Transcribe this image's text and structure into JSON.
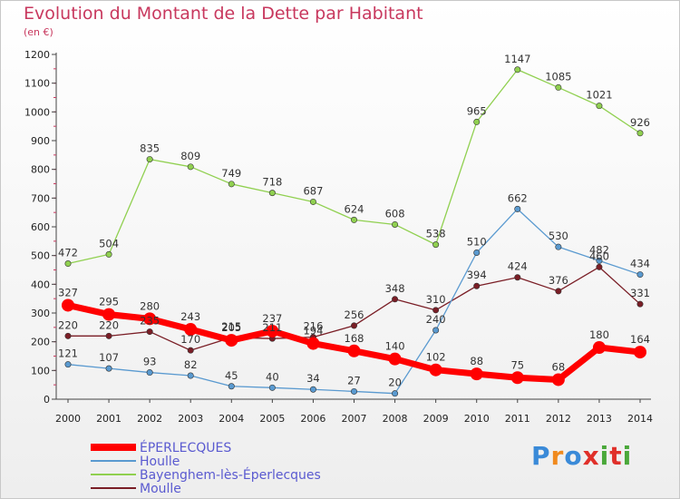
{
  "chart_data": {
    "type": "line",
    "title": "Evolution du Montant de la Dette par Habitant",
    "unit": "(en €)",
    "x": [
      "2000",
      "2001",
      "2002",
      "2003",
      "2004",
      "2005",
      "2006",
      "2007",
      "2008",
      "2009",
      "2010",
      "2011",
      "2012",
      "2013",
      "2014"
    ],
    "ylim": [
      0,
      1200
    ],
    "yticks": [
      0,
      100,
      200,
      300,
      400,
      500,
      600,
      700,
      800,
      900,
      1000,
      1100,
      1200
    ],
    "grid": false,
    "legend_position": "bottom-left",
    "series": [
      {
        "name": "Bayenghem-lès-Éperlecques",
        "color": "#90d050",
        "values": [
          472,
          504,
          835,
          809,
          749,
          718,
          687,
          624,
          608,
          538,
          965,
          1147,
          1085,
          1021,
          926
        ]
      },
      {
        "name": "Moulle",
        "color": "#7a1e26",
        "values": [
          220,
          220,
          235,
          170,
          215,
          211,
          216,
          256,
          348,
          310,
          394,
          424,
          376,
          460,
          331
        ]
      },
      {
        "name": "Houlle",
        "color": "#5a9ad0",
        "values": [
          121,
          107,
          93,
          82,
          45,
          40,
          34,
          27,
          20,
          240,
          510,
          662,
          530,
          482,
          434
        ]
      },
      {
        "name": "ÉPERLECQUES",
        "color": "#ff0000",
        "values": [
          327,
          295,
          280,
          243,
          205,
          237,
          194,
          168,
          140,
          102,
          88,
          75,
          68,
          180,
          164
        ]
      }
    ]
  },
  "logo": {
    "letters": [
      "P",
      "r",
      "o",
      "x",
      "i",
      "t",
      "i"
    ],
    "colors": [
      "#3a8ad8",
      "#f08a1e",
      "#3a8ad8",
      "#e0302a",
      "#4aa83a",
      "#e0302a",
      "#4aa83a"
    ]
  }
}
